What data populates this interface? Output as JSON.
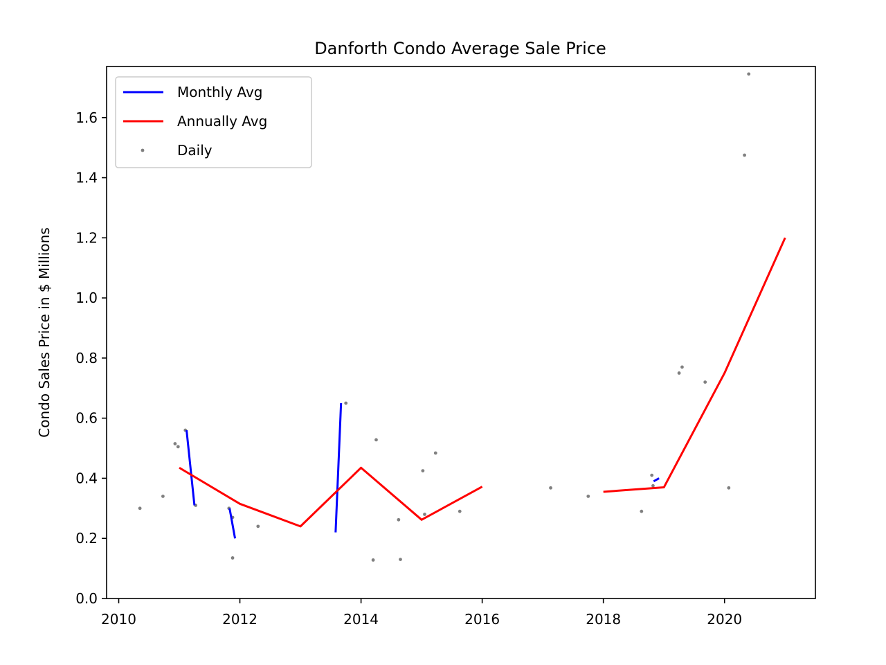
{
  "chart_data": {
    "type": "line",
    "title": "Danforth Condo Average Sale Price",
    "xlabel": "",
    "ylabel": "Condo Sales Price in $ Millions",
    "xlim": [
      2009.8,
      2021.5
    ],
    "ylim": [
      0.0,
      1.77
    ],
    "xticks": [
      2010,
      2012,
      2014,
      2016,
      2018,
      2020
    ],
    "xtick_labels": [
      "2010",
      "2012",
      "2014",
      "2016",
      "2018",
      "2020"
    ],
    "yticks": [
      0.0,
      0.2,
      0.4,
      0.6,
      0.8,
      1.0,
      1.2,
      1.4,
      1.6
    ],
    "ytick_labels": [
      "0.0",
      "0.2",
      "0.4",
      "0.6",
      "0.8",
      "1.0",
      "1.2",
      "1.4",
      "1.6"
    ],
    "grid": false,
    "legend_placement": "top-left",
    "series": [
      {
        "name": "Monthly Avg",
        "kind": "line",
        "color": "#0000ff",
        "segments": [
          [
            [
              2011.12,
              0.56
            ],
            [
              2011.25,
              0.31
            ]
          ],
          [
            [
              2011.83,
              0.3
            ],
            [
              2011.92,
              0.2
            ]
          ],
          [
            [
              2013.58,
              0.22
            ],
            [
              2013.67,
              0.65
            ]
          ],
          [
            [
              2018.83,
              0.39
            ],
            [
              2018.92,
              0.4
            ]
          ]
        ]
      },
      {
        "name": "Annually Avg",
        "kind": "line",
        "color": "#ff0000",
        "segments": [
          [
            [
              2011,
              0.435
            ],
            [
              2012,
              0.315
            ],
            [
              2013,
              0.24
            ],
            [
              2014,
              0.435
            ],
            [
              2015,
              0.262
            ],
            [
              2016,
              0.372
            ]
          ],
          [
            [
              2018,
              0.355
            ],
            [
              2019,
              0.37
            ],
            [
              2020,
              0.75
            ],
            [
              2021,
              1.2
            ]
          ]
        ]
      },
      {
        "name": "Daily",
        "kind": "scatter",
        "color": "#808080",
        "points": [
          [
            2010.35,
            0.3
          ],
          [
            2010.73,
            0.34
          ],
          [
            2010.93,
            0.515
          ],
          [
            2010.98,
            0.505
          ],
          [
            2011.1,
            0.56
          ],
          [
            2011.27,
            0.31
          ],
          [
            2011.82,
            0.3
          ],
          [
            2011.88,
            0.27
          ],
          [
            2011.88,
            0.135
          ],
          [
            2012.3,
            0.24
          ],
          [
            2013.75,
            0.65
          ],
          [
            2014.2,
            0.128
          ],
          [
            2014.25,
            0.528
          ],
          [
            2014.62,
            0.262
          ],
          [
            2014.65,
            0.13
          ],
          [
            2015.02,
            0.425
          ],
          [
            2015.05,
            0.28
          ],
          [
            2015.23,
            0.484
          ],
          [
            2015.63,
            0.29
          ],
          [
            2017.13,
            0.368
          ],
          [
            2017.75,
            0.34
          ],
          [
            2018.63,
            0.29
          ],
          [
            2018.8,
            0.41
          ],
          [
            2018.82,
            0.375
          ],
          [
            2019.25,
            0.75
          ],
          [
            2019.3,
            0.77
          ],
          [
            2019.68,
            0.72
          ],
          [
            2020.07,
            0.368
          ],
          [
            2020.33,
            1.475
          ],
          [
            2020.4,
            1.745
          ]
        ]
      }
    ]
  }
}
